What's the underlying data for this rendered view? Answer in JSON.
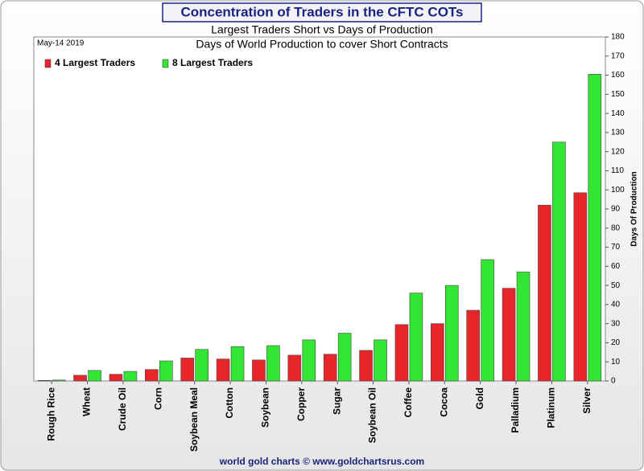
{
  "chart_data": {
    "type": "bar",
    "title": "Concentration of Traders in the CFTC COTs",
    "subtitle": "Largest Traders Short vs Days of Production",
    "subtitle2": "Days of World Production to cover Short Contracts",
    "date": "May-14  2019",
    "y_label": "Days Of Production",
    "footer": "world gold charts © www.goldchartsrus.com",
    "categories": [
      "Rough Rice",
      "Wheat",
      "Crude Oil",
      "Corn",
      "Soybean Meal",
      "Cotton",
      "Soybean",
      "Copper",
      "Sugar",
      "Soybean Oil",
      "Coffee",
      "Cocoa",
      "Gold",
      "Palladium",
      "Platinum",
      "Silver"
    ],
    "series": [
      {
        "name": "4 Largest Traders",
        "color": "#e8262a",
        "values": [
          0.3,
          3,
          3.5,
          6,
          12,
          11.5,
          11,
          13.5,
          14,
          16,
          29.5,
          30,
          37,
          48.5,
          92,
          98.5
        ]
      },
      {
        "name": "8 Largest Traders",
        "color": "#33e633",
        "values": [
          0.5,
          5.5,
          5,
          10.5,
          16.5,
          18,
          18.5,
          21.5,
          25,
          21.5,
          46,
          50,
          63.5,
          57,
          125,
          160.5
        ]
      }
    ],
    "ylim": [
      0,
      180
    ],
    "yticks": [
      0,
      10,
      20,
      30,
      40,
      50,
      60,
      70,
      80,
      90,
      100,
      110,
      120,
      130,
      140,
      150,
      160,
      170,
      180
    ],
    "y_axis_side": "right",
    "legend": "top-left",
    "grid": false
  }
}
